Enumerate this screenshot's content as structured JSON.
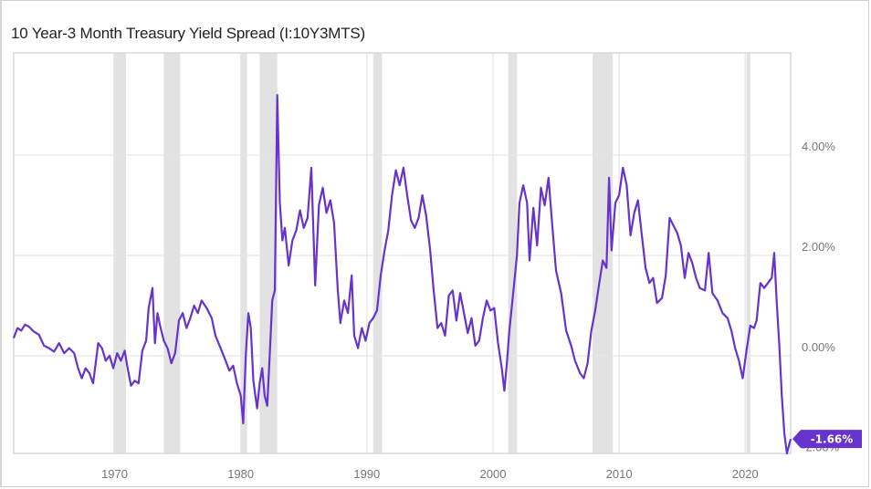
{
  "chart_data": {
    "type": "line",
    "title": "10 Year-3 Month Treasury Yield Spread (I:10Y3MTS)",
    "xlabel": "",
    "ylabel": "",
    "xlim": [
      1962.0,
      2023.6
    ],
    "ylim": [
      -1.95,
      6.04
    ],
    "grid": true,
    "legend": "none",
    "x_ticks": [
      {
        "value": 1970,
        "label": "1970"
      },
      {
        "value": 1980,
        "label": "1980"
      },
      {
        "value": 1990,
        "label": "1990"
      },
      {
        "value": 2000,
        "label": "2000"
      },
      {
        "value": 2010,
        "label": "2010"
      },
      {
        "value": 2020,
        "label": "2020"
      }
    ],
    "y_ticks": [
      {
        "value": 4,
        "label": "4.00%"
      },
      {
        "value": 2,
        "label": "2.00%"
      },
      {
        "value": 0,
        "label": "0.00%"
      },
      {
        "value": -2,
        "label": "-2.00%"
      }
    ],
    "recessions": [
      [
        1969.9,
        1970.9
      ],
      [
        1973.9,
        1975.2
      ],
      [
        1980.0,
        1980.5
      ],
      [
        1981.5,
        1982.9
      ],
      [
        1990.5,
        1991.2
      ],
      [
        2001.2,
        2001.9
      ],
      [
        2007.9,
        2009.5
      ],
      [
        2020.1,
        2020.4
      ]
    ],
    "series": [
      {
        "name": "10 Year-3 Month Treasury Yield Spread",
        "color": "#6633cc",
        "last_value_label": "-1.66%",
        "points": [
          [
            1962.0,
            0.35
          ],
          [
            1962.3,
            0.55
          ],
          [
            1962.6,
            0.5
          ],
          [
            1962.9,
            0.62
          ],
          [
            1963.2,
            0.58
          ],
          [
            1963.6,
            0.48
          ],
          [
            1964.0,
            0.42
          ],
          [
            1964.4,
            0.2
          ],
          [
            1964.8,
            0.15
          ],
          [
            1965.2,
            0.08
          ],
          [
            1965.6,
            0.25
          ],
          [
            1966.0,
            0.05
          ],
          [
            1966.4,
            0.15
          ],
          [
            1966.8,
            0.05
          ],
          [
            1967.1,
            -0.25
          ],
          [
            1967.4,
            -0.45
          ],
          [
            1967.7,
            -0.25
          ],
          [
            1968.0,
            -0.35
          ],
          [
            1968.3,
            -0.55
          ],
          [
            1968.7,
            0.25
          ],
          [
            1969.0,
            0.15
          ],
          [
            1969.3,
            -0.1
          ],
          [
            1969.6,
            0.0
          ],
          [
            1969.9,
            -0.25
          ],
          [
            1970.2,
            0.05
          ],
          [
            1970.5,
            -0.1
          ],
          [
            1970.8,
            0.1
          ],
          [
            1971.0,
            -0.2
          ],
          [
            1971.3,
            -0.6
          ],
          [
            1971.6,
            -0.5
          ],
          [
            1971.9,
            -0.55
          ],
          [
            1972.2,
            0.1
          ],
          [
            1972.5,
            0.3
          ],
          [
            1972.7,
            0.95
          ],
          [
            1973.0,
            1.35
          ],
          [
            1973.2,
            0.25
          ],
          [
            1973.4,
            0.85
          ],
          [
            1973.6,
            0.6
          ],
          [
            1973.9,
            0.3
          ],
          [
            1974.2,
            0.15
          ],
          [
            1974.5,
            -0.15
          ],
          [
            1974.8,
            0.05
          ],
          [
            1975.1,
            0.7
          ],
          [
            1975.4,
            0.85
          ],
          [
            1975.7,
            0.55
          ],
          [
            1976.0,
            0.75
          ],
          [
            1976.3,
            1.0
          ],
          [
            1976.6,
            0.85
          ],
          [
            1976.9,
            1.1
          ],
          [
            1977.3,
            0.95
          ],
          [
            1977.7,
            0.75
          ],
          [
            1978.0,
            0.4
          ],
          [
            1978.4,
            0.15
          ],
          [
            1978.8,
            -0.1
          ],
          [
            1979.1,
            -0.3
          ],
          [
            1979.4,
            -0.2
          ],
          [
            1979.7,
            -0.55
          ],
          [
            1980.0,
            -0.8
          ],
          [
            1980.2,
            -1.35
          ],
          [
            1980.4,
            0.0
          ],
          [
            1980.6,
            0.85
          ],
          [
            1980.8,
            0.55
          ],
          [
            1981.0,
            -0.5
          ],
          [
            1981.3,
            -1.05
          ],
          [
            1981.5,
            -0.55
          ],
          [
            1981.7,
            -0.25
          ],
          [
            1981.9,
            -0.8
          ],
          [
            1982.1,
            -1.0
          ],
          [
            1982.3,
            0.0
          ],
          [
            1982.5,
            1.1
          ],
          [
            1982.7,
            1.3
          ],
          [
            1982.9,
            5.2
          ],
          [
            1983.1,
            3.05
          ],
          [
            1983.3,
            2.3
          ],
          [
            1983.5,
            2.55
          ],
          [
            1983.8,
            1.8
          ],
          [
            1984.1,
            2.3
          ],
          [
            1984.4,
            2.5
          ],
          [
            1984.7,
            2.9
          ],
          [
            1985.0,
            2.55
          ],
          [
            1985.3,
            2.75
          ],
          [
            1985.6,
            3.75
          ],
          [
            1985.9,
            1.4
          ],
          [
            1986.2,
            3.0
          ],
          [
            1986.5,
            3.35
          ],
          [
            1986.8,
            2.85
          ],
          [
            1987.1,
            3.1
          ],
          [
            1987.4,
            2.65
          ],
          [
            1987.7,
            1.3
          ],
          [
            1987.9,
            0.65
          ],
          [
            1988.2,
            1.1
          ],
          [
            1988.5,
            0.85
          ],
          [
            1988.8,
            1.6
          ],
          [
            1989.0,
            0.4
          ],
          [
            1989.3,
            0.15
          ],
          [
            1989.6,
            0.55
          ],
          [
            1989.9,
            0.3
          ],
          [
            1990.2,
            0.65
          ],
          [
            1990.5,
            0.75
          ],
          [
            1990.8,
            0.9
          ],
          [
            1991.1,
            1.6
          ],
          [
            1991.4,
            2.1
          ],
          [
            1991.7,
            2.5
          ],
          [
            1992.0,
            3.2
          ],
          [
            1992.3,
            3.7
          ],
          [
            1992.6,
            3.4
          ],
          [
            1992.9,
            3.75
          ],
          [
            1993.2,
            3.2
          ],
          [
            1993.5,
            2.7
          ],
          [
            1993.8,
            2.55
          ],
          [
            1994.1,
            2.75
          ],
          [
            1994.4,
            3.2
          ],
          [
            1994.7,
            2.8
          ],
          [
            1995.0,
            2.15
          ],
          [
            1995.3,
            1.3
          ],
          [
            1995.6,
            0.55
          ],
          [
            1995.9,
            0.65
          ],
          [
            1996.2,
            0.4
          ],
          [
            1996.5,
            1.2
          ],
          [
            1996.8,
            1.3
          ],
          [
            1997.1,
            0.7
          ],
          [
            1997.4,
            1.25
          ],
          [
            1997.7,
            0.85
          ],
          [
            1998.0,
            0.45
          ],
          [
            1998.3,
            0.75
          ],
          [
            1998.6,
            0.2
          ],
          [
            1998.9,
            0.3
          ],
          [
            1999.2,
            0.75
          ],
          [
            1999.5,
            1.1
          ],
          [
            1999.8,
            0.9
          ],
          [
            2000.1,
            0.95
          ],
          [
            2000.4,
            0.25
          ],
          [
            2000.7,
            -0.25
          ],
          [
            2000.9,
            -0.7
          ],
          [
            2001.1,
            -0.15
          ],
          [
            2001.3,
            0.5
          ],
          [
            2001.6,
            1.25
          ],
          [
            2001.9,
            2.0
          ],
          [
            2002.1,
            3.05
          ],
          [
            2002.4,
            3.4
          ],
          [
            2002.7,
            3.05
          ],
          [
            2002.9,
            1.9
          ],
          [
            2003.2,
            2.95
          ],
          [
            2003.5,
            2.2
          ],
          [
            2003.8,
            3.35
          ],
          [
            2004.1,
            3.0
          ],
          [
            2004.4,
            3.55
          ],
          [
            2004.7,
            2.6
          ],
          [
            2005.0,
            1.7
          ],
          [
            2005.4,
            1.25
          ],
          [
            2005.8,
            0.5
          ],
          [
            2006.2,
            0.2
          ],
          [
            2006.5,
            -0.1
          ],
          [
            2006.9,
            -0.35
          ],
          [
            2007.2,
            -0.45
          ],
          [
            2007.5,
            -0.15
          ],
          [
            2007.8,
            0.5
          ],
          [
            2008.1,
            0.9
          ],
          [
            2008.4,
            1.4
          ],
          [
            2008.7,
            1.9
          ],
          [
            2009.0,
            1.75
          ],
          [
            2009.2,
            3.55
          ],
          [
            2009.4,
            2.1
          ],
          [
            2009.7,
            3.05
          ],
          [
            2010.0,
            3.2
          ],
          [
            2010.3,
            3.75
          ],
          [
            2010.6,
            3.4
          ],
          [
            2010.9,
            2.4
          ],
          [
            2011.2,
            2.85
          ],
          [
            2011.5,
            3.1
          ],
          [
            2011.8,
            2.4
          ],
          [
            2012.1,
            1.75
          ],
          [
            2012.4,
            1.45
          ],
          [
            2012.7,
            1.55
          ],
          [
            2013.0,
            1.05
          ],
          [
            2013.4,
            1.15
          ],
          [
            2013.7,
            1.6
          ],
          [
            2014.0,
            2.75
          ],
          [
            2014.3,
            2.6
          ],
          [
            2014.6,
            2.45
          ],
          [
            2014.9,
            2.2
          ],
          [
            2015.2,
            1.55
          ],
          [
            2015.5,
            2.05
          ],
          [
            2015.8,
            1.85
          ],
          [
            2016.1,
            1.55
          ],
          [
            2016.4,
            1.35
          ],
          [
            2016.8,
            1.3
          ],
          [
            2017.1,
            2.05
          ],
          [
            2017.4,
            1.25
          ],
          [
            2017.8,
            1.1
          ],
          [
            2018.2,
            0.85
          ],
          [
            2018.6,
            0.75
          ],
          [
            2018.9,
            0.5
          ],
          [
            2019.2,
            0.15
          ],
          [
            2019.5,
            -0.1
          ],
          [
            2019.8,
            -0.45
          ],
          [
            2020.1,
            0.1
          ],
          [
            2020.4,
            0.6
          ],
          [
            2020.7,
            0.55
          ],
          [
            2020.9,
            0.7
          ],
          [
            2021.2,
            1.45
          ],
          [
            2021.5,
            1.35
          ],
          [
            2021.8,
            1.45
          ],
          [
            2022.1,
            1.55
          ],
          [
            2022.3,
            2.05
          ],
          [
            2022.5,
            1.05
          ],
          [
            2022.7,
            0.2
          ],
          [
            2022.9,
            -0.8
          ],
          [
            2023.1,
            -1.55
          ],
          [
            2023.3,
            -1.95
          ],
          [
            2023.6,
            -1.66
          ]
        ]
      }
    ]
  }
}
